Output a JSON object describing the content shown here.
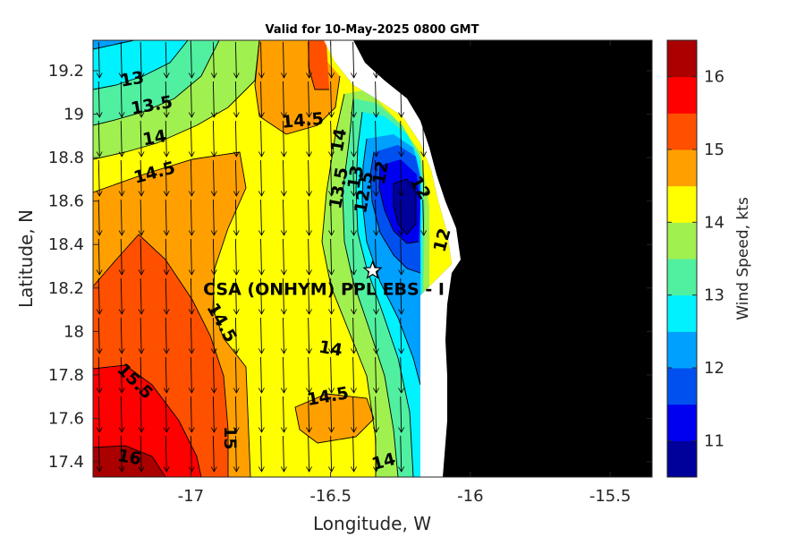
{
  "chart_data": {
    "type": "contour",
    "title": "Valid for 10-May-2025 0800 GMT",
    "xlabel": "Longitude, W",
    "ylabel": "Latitude, N",
    "xlim": [
      -17.35,
      -15.35
    ],
    "ylim": [
      17.33,
      19.34
    ],
    "xticks": [
      -17,
      -16.5,
      -16,
      -15.5
    ],
    "xtick_labels": [
      "-17",
      "-16.5",
      "-16",
      "-15.5"
    ],
    "yticks": [
      17.4,
      17.6,
      17.8,
      18.0,
      18.2,
      18.4,
      18.6,
      18.8,
      19.0,
      19.2
    ],
    "ytick_labels": [
      "17.4",
      "17.6",
      "17.8",
      "18",
      "18.2",
      "18.4",
      "18.6",
      "18.8",
      "19",
      "19.2"
    ],
    "colorbar": {
      "label": "Wind Speed, kts",
      "range": [
        10.5,
        16.5
      ],
      "ticks": [
        11,
        12,
        13,
        14,
        15,
        16
      ],
      "tick_labels": [
        "11",
        "12",
        "13",
        "14",
        "15",
        "16"
      ],
      "colors": [
        "#00009a",
        "#0000f0",
        "#0050f0",
        "#00a0ff",
        "#00f2ff",
        "#50f0a0",
        "#a0f050",
        "#ffff00",
        "#ffa000",
        "#ff5000",
        "#ff0000",
        "#aa0000"
      ]
    },
    "contour_labels": [
      {
        "text": "13",
        "lon": -17.21,
        "lat": 19.16,
        "rot": -10
      },
      {
        "text": "13.5",
        "lon": -17.14,
        "lat": 19.04,
        "rot": -10
      },
      {
        "text": "14",
        "lon": -17.13,
        "lat": 18.89,
        "rot": -10
      },
      {
        "text": "14.5",
        "lon": -17.13,
        "lat": 18.73,
        "rot": -15
      },
      {
        "text": "14.5",
        "lon": -16.6,
        "lat": 18.97,
        "rot": -5
      },
      {
        "text": "14",
        "lon": -16.47,
        "lat": 18.88,
        "rot": -80
      },
      {
        "text": "13.5",
        "lon": -16.47,
        "lat": 18.66,
        "rot": -80
      },
      {
        "text": "13",
        "lon": -16.41,
        "lat": 18.71,
        "rot": -80
      },
      {
        "text": "12.5",
        "lon": -16.38,
        "lat": 18.64,
        "rot": -80
      },
      {
        "text": "12",
        "lon": -16.32,
        "lat": 18.73,
        "rot": -80
      },
      {
        "text": "12",
        "lon": -16.18,
        "lat": 18.66,
        "rot": 60
      },
      {
        "text": "12",
        "lon": -16.1,
        "lat": 18.42,
        "rot": -75
      },
      {
        "text": "14.5",
        "lon": -16.89,
        "lat": 18.04,
        "rot": 60
      },
      {
        "text": "14",
        "lon": -16.5,
        "lat": 17.92,
        "rot": 10
      },
      {
        "text": "14.5",
        "lon": -16.51,
        "lat": 17.7,
        "rot": -10
      },
      {
        "text": "15.5",
        "lon": -17.2,
        "lat": 17.77,
        "rot": 45
      },
      {
        "text": "15",
        "lon": -16.86,
        "lat": 17.51,
        "rot": 90
      },
      {
        "text": "16",
        "lon": -17.22,
        "lat": 17.42,
        "rot": 10
      },
      {
        "text": "14",
        "lon": -16.31,
        "lat": 17.4,
        "rot": -15
      }
    ],
    "site": {
      "label": "CSA (ONHYM) PPL EBS - I",
      "lon": -16.35,
      "lat": 18.28
    },
    "wind_direction": "north (arrows pointing south)"
  }
}
